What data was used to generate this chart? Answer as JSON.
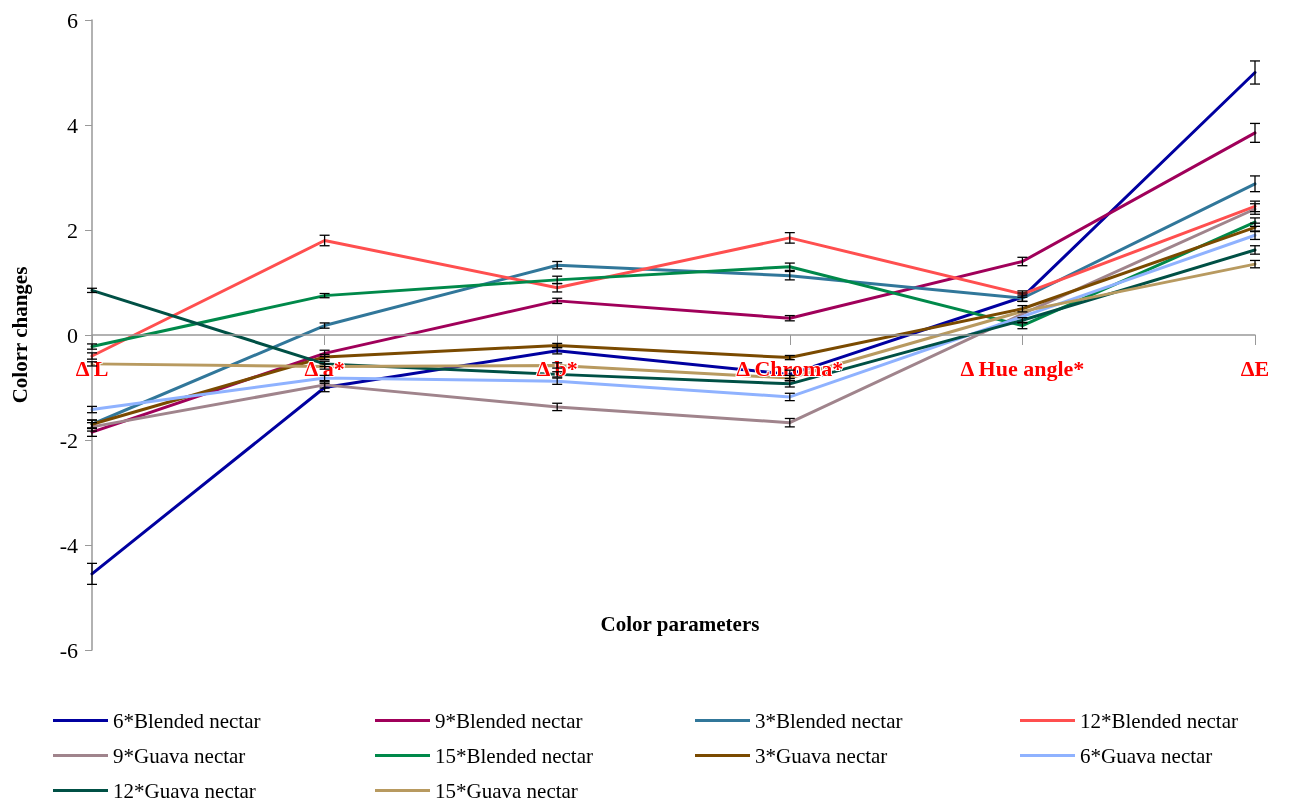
{
  "chart_data": {
    "type": "line",
    "xlabel": "Color parameters",
    "ylabel": "Colorr changes",
    "categories": [
      "Δ L",
      "Δ a*",
      "Δ b*",
      "Δ Chroma*",
      "Δ Hue angle*",
      "ΔE"
    ],
    "ylim": [
      -6,
      6
    ],
    "yticks": [
      -6,
      -4,
      -2,
      0,
      2,
      4,
      6
    ],
    "grid": false,
    "legend": "bottom",
    "marker": "none",
    "line_style": "solid",
    "series": [
      {
        "name": "6*Blended nectar",
        "color": "#0000a0",
        "values": [
          -4.55,
          -1.0,
          -0.3,
          -0.75,
          0.72,
          5.0
        ],
        "errors": [
          0.2,
          0.08,
          0.06,
          0.08,
          0.08,
          0.22
        ]
      },
      {
        "name": "9*Blended nectar",
        "color": "#a0005a",
        "values": [
          -1.85,
          -0.35,
          0.65,
          0.32,
          1.4,
          3.85
        ],
        "errors": [
          0.08,
          0.06,
          0.05,
          0.05,
          0.08,
          0.18
        ]
      },
      {
        "name": "3*Blended nectar",
        "color": "#31779a",
        "values": [
          -1.7,
          0.18,
          1.33,
          1.13,
          0.7,
          2.88
        ],
        "errors": [
          0.08,
          0.05,
          0.07,
          0.08,
          0.06,
          0.15
        ]
      },
      {
        "name": "12*Blended nectar",
        "color": "#ff4f4f",
        "values": [
          -0.4,
          1.8,
          0.9,
          1.85,
          0.78,
          2.45
        ],
        "errors": [
          0.06,
          0.1,
          0.08,
          0.1,
          0.06,
          0.1
        ]
      },
      {
        "name": "9*Guava nectar",
        "color": "#a0848c",
        "values": [
          -1.75,
          -0.95,
          -1.37,
          -1.67,
          0.4,
          2.4
        ],
        "errors": [
          0.08,
          0.06,
          0.07,
          0.08,
          null,
          0.1
        ]
      },
      {
        "name": "15*Blended nectar",
        "color": "#00894a",
        "values": [
          -0.22,
          0.75,
          1.05,
          1.3,
          0.18,
          2.15
        ],
        "errors": [
          0.05,
          0.04,
          0.07,
          0.07,
          0.06,
          0.08
        ]
      },
      {
        "name": "3*Guava nectar",
        "color": "#7a4a00",
        "values": [
          -1.7,
          -0.42,
          -0.2,
          -0.43,
          0.5,
          2.05
        ],
        "errors": [
          0.08,
          0.05,
          0.04,
          0.04,
          0.06,
          0.08
        ]
      },
      {
        "name": "6*Guava nectar",
        "color": "#8fb2ff",
        "values": [
          -1.42,
          -0.82,
          -0.88,
          -1.18,
          0.35,
          1.9
        ],
        "errors": [
          0.06,
          0.05,
          0.06,
          0.07,
          null,
          0.08
        ]
      },
      {
        "name": "12*Guava nectar",
        "color": "#005045",
        "values": [
          0.85,
          -0.55,
          -0.75,
          -0.93,
          0.28,
          1.62
        ],
        "errors": [
          0.04,
          0.05,
          0.05,
          0.06,
          0.05,
          0.08
        ]
      },
      {
        "name": "15*Guava nectar",
        "color": "#b89a60",
        "values": [
          -0.55,
          -0.6,
          -0.58,
          -0.82,
          0.45,
          1.35
        ],
        "errors": [
          0.04,
          0.05,
          0.05,
          0.05,
          null,
          0.07
        ]
      }
    ]
  }
}
